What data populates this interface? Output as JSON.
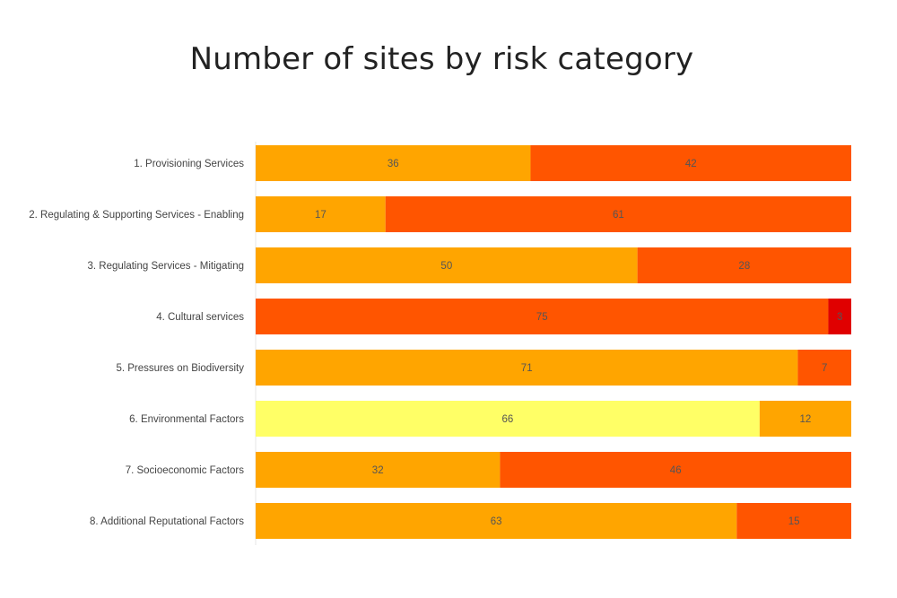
{
  "chart_data": {
    "type": "bar",
    "orientation": "horizontal",
    "stacked": true,
    "title": "Number of sites by risk category",
    "categories": [
      "1. Provisioning Services",
      "2. Regulating & Supporting Services - Enabling",
      "3. Regulating Services - Mitigating",
      "4. Cultural services",
      "5. Pressures on Biodiversity",
      "6. Environmental Factors",
      "7. Socioeconomic Factors",
      "8. Additional Reputational Factors"
    ],
    "rows": [
      [
        {
          "value": 36,
          "color": "#FFA500"
        },
        {
          "value": 42,
          "color": "#FF5500"
        }
      ],
      [
        {
          "value": 17,
          "color": "#FFA500"
        },
        {
          "value": 61,
          "color": "#FF5500"
        }
      ],
      [
        {
          "value": 50,
          "color": "#FFA500"
        },
        {
          "value": 28,
          "color": "#FF5500"
        }
      ],
      [
        {
          "value": 75,
          "color": "#FF5500"
        },
        {
          "value": 3,
          "color": "#E00000"
        }
      ],
      [
        {
          "value": 71,
          "color": "#FFA500"
        },
        {
          "value": 7,
          "color": "#FF5500"
        }
      ],
      [
        {
          "value": 66,
          "color": "#FFFF66"
        },
        {
          "value": 12,
          "color": "#FFA500"
        }
      ],
      [
        {
          "value": 32,
          "color": "#FFA500"
        },
        {
          "value": 46,
          "color": "#FF5500"
        }
      ],
      [
        {
          "value": 63,
          "color": "#FFA500"
        },
        {
          "value": 15,
          "color": "#FF5500"
        }
      ]
    ],
    "xlim": [
      0,
      78
    ],
    "grid": false,
    "legend": "none"
  }
}
